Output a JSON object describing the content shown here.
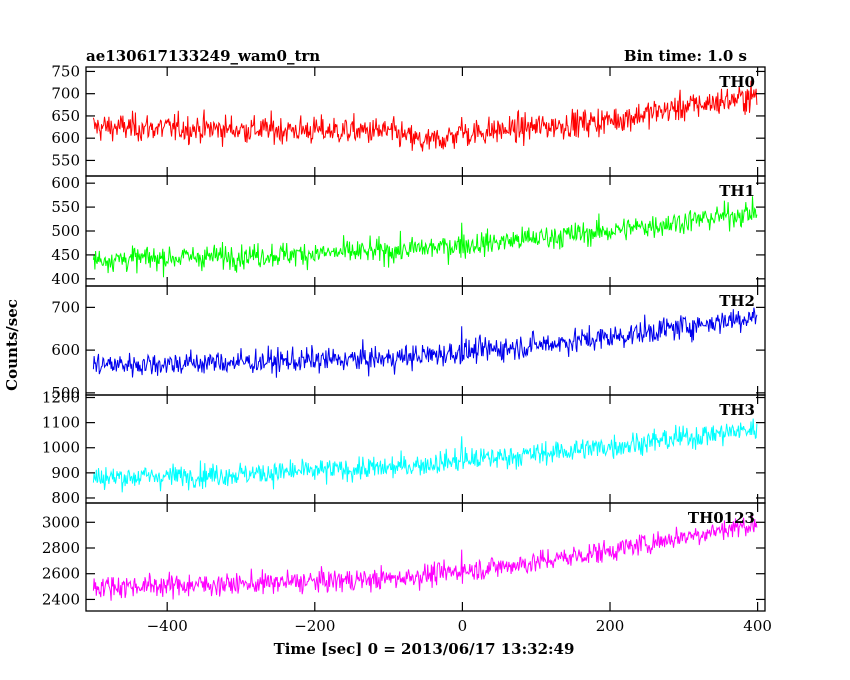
{
  "header": {
    "title": "ae130617133249_wam0_trn",
    "bin_time": "Bin time: 1.0 s"
  },
  "chart_data": {
    "type": "line",
    "xlabel": "Time [sec] 0 = 2013/06/17 13:32:49",
    "ylabel": "Counts/sec",
    "xlim": [
      -510,
      410
    ],
    "xticks": [
      -400,
      -200,
      0,
      200,
      400
    ],
    "x_tick_labels": [
      "−400",
      "−200",
      "0",
      "200",
      "400"
    ],
    "panels": [
      {
        "name": "TH0",
        "color": "#ff0000",
        "ylim": [
          515,
          760
        ],
        "yticks": [
          550,
          600,
          650,
          700,
          750
        ],
        "trend": {
          "x": [
            -500,
            -300,
            -100,
            -50,
            0,
            100,
            200,
            300,
            400
          ],
          "y": [
            625,
            620,
            615,
            590,
            610,
            625,
            640,
            670,
            695
          ]
        },
        "noise_sd": 27
      },
      {
        "name": "TH1",
        "color": "#00ff00",
        "ylim": [
          385,
          615
        ],
        "yticks": [
          400,
          450,
          500,
          550,
          600
        ],
        "trend": {
          "x": [
            -500,
            -300,
            -100,
            0,
            100,
            200,
            300,
            400
          ],
          "y": [
            440,
            448,
            458,
            470,
            485,
            500,
            520,
            540
          ]
        },
        "noise_sd": 22
      },
      {
        "name": "TH2",
        "color": "#0000ee",
        "ylim": [
          495,
          750
        ],
        "yticks": [
          500,
          600,
          700
        ],
        "trend": {
          "x": [
            -500,
            -300,
            -100,
            0,
            100,
            200,
            300,
            400
          ],
          "y": [
            565,
            572,
            580,
            595,
            612,
            630,
            655,
            680
          ]
        },
        "noise_sd": 25
      },
      {
        "name": "TH3",
        "color": "#00ffff",
        "ylim": [
          780,
          1210
        ],
        "yticks": [
          800,
          900,
          1000,
          1100,
          1200
        ],
        "trend": {
          "x": [
            -500,
            -300,
            -100,
            0,
            100,
            200,
            300,
            400
          ],
          "y": [
            880,
            895,
            920,
            950,
            975,
            1005,
            1040,
            1075
          ]
        },
        "noise_sd": 40
      },
      {
        "name": "TH0123",
        "color": "#ff00ff",
        "ylim": [
          2310,
          3150
        ],
        "yticks": [
          2400,
          2600,
          2800,
          3000
        ],
        "trend": {
          "x": [
            -500,
            -300,
            -100,
            0,
            100,
            200,
            300,
            400
          ],
          "y": [
            2500,
            2520,
            2560,
            2620,
            2690,
            2780,
            2890,
            2990
          ]
        },
        "noise_sd": 75
      }
    ]
  }
}
